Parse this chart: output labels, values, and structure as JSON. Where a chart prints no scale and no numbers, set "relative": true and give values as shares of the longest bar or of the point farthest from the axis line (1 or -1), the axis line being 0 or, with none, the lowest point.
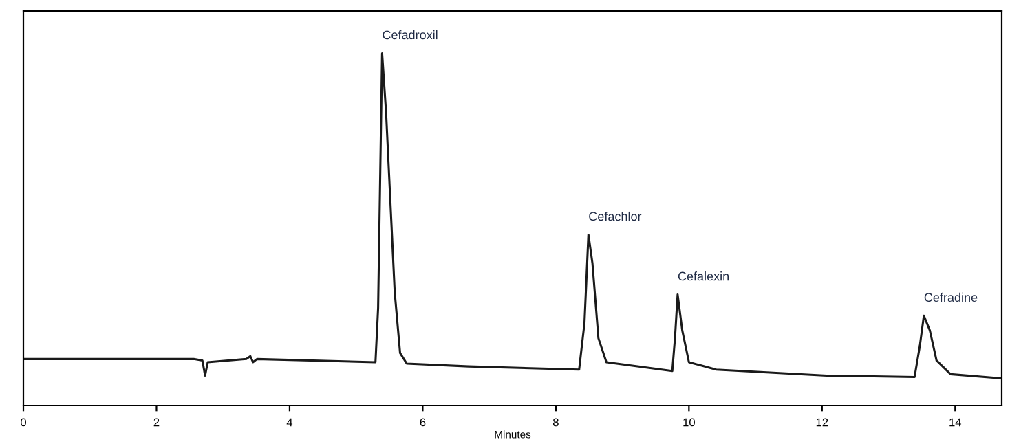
{
  "chart_data": {
    "type": "line",
    "xlabel": "Minutes",
    "relative": true,
    "xlim": [
      0,
      14.7
    ],
    "xticks": [
      0,
      2,
      4,
      6,
      8,
      10,
      12,
      14
    ],
    "grid": false,
    "legend": false,
    "marker": "none",
    "line_style": "solid",
    "series": [
      {
        "color": "#1a1a1a",
        "x": [
          0,
          2.56,
          2.69,
          2.73,
          2.77,
          3.35,
          3.41,
          3.45,
          3.51,
          5.29,
          5.33,
          5.39,
          5.45,
          5.58,
          5.66,
          5.76,
          6.69,
          8.35,
          8.43,
          8.49,
          8.55,
          8.64,
          8.76,
          9.75,
          9.79,
          9.83,
          9.9,
          10.0,
          10.41,
          12.07,
          13.39,
          13.47,
          13.53,
          13.62,
          13.72,
          13.93,
          14.7
        ],
        "values": [
          0.132,
          0.132,
          0.128,
          0.085,
          0.123,
          0.132,
          0.14,
          0.123,
          0.132,
          0.123,
          0.277,
          1.0,
          0.83,
          0.32,
          0.149,
          0.119,
          0.111,
          0.102,
          0.234,
          0.485,
          0.404,
          0.191,
          0.123,
          0.098,
          0.191,
          0.315,
          0.213,
          0.123,
          0.102,
          0.085,
          0.081,
          0.17,
          0.255,
          0.213,
          0.128,
          0.089,
          0.077
        ]
      }
    ],
    "annotations": [
      {
        "text": "Cefadroxil",
        "x": 5.39,
        "y": 1.0
      },
      {
        "text": "Cefachlor",
        "x": 8.49,
        "y": 0.485
      },
      {
        "text": "Cefalexin",
        "x": 9.83,
        "y": 0.315
      },
      {
        "text": "Cefradine",
        "x": 13.53,
        "y": 0.255
      }
    ]
  }
}
